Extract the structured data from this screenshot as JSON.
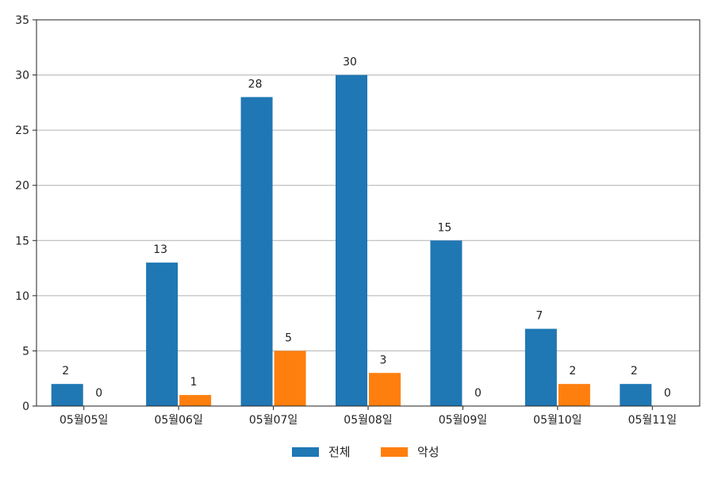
{
  "chart_data": {
    "type": "bar",
    "categories": [
      "05월05일",
      "05월06일",
      "05월07일",
      "05월08일",
      "05월09일",
      "05월10일",
      "05월11일"
    ],
    "series": [
      {
        "name": "전체",
        "values": [
          2,
          13,
          28,
          30,
          15,
          7,
          2
        ],
        "color": "#1f77b4"
      },
      {
        "name": "악성",
        "values": [
          0,
          1,
          5,
          3,
          0,
          2,
          0
        ],
        "color": "#ff7f0e"
      }
    ],
    "ylim": [
      0,
      35
    ],
    "yticks": [
      0,
      5,
      10,
      15,
      20,
      25,
      30,
      35
    ],
    "grid": "horizontal",
    "legend": "bottom-center",
    "data_labels": true
  }
}
